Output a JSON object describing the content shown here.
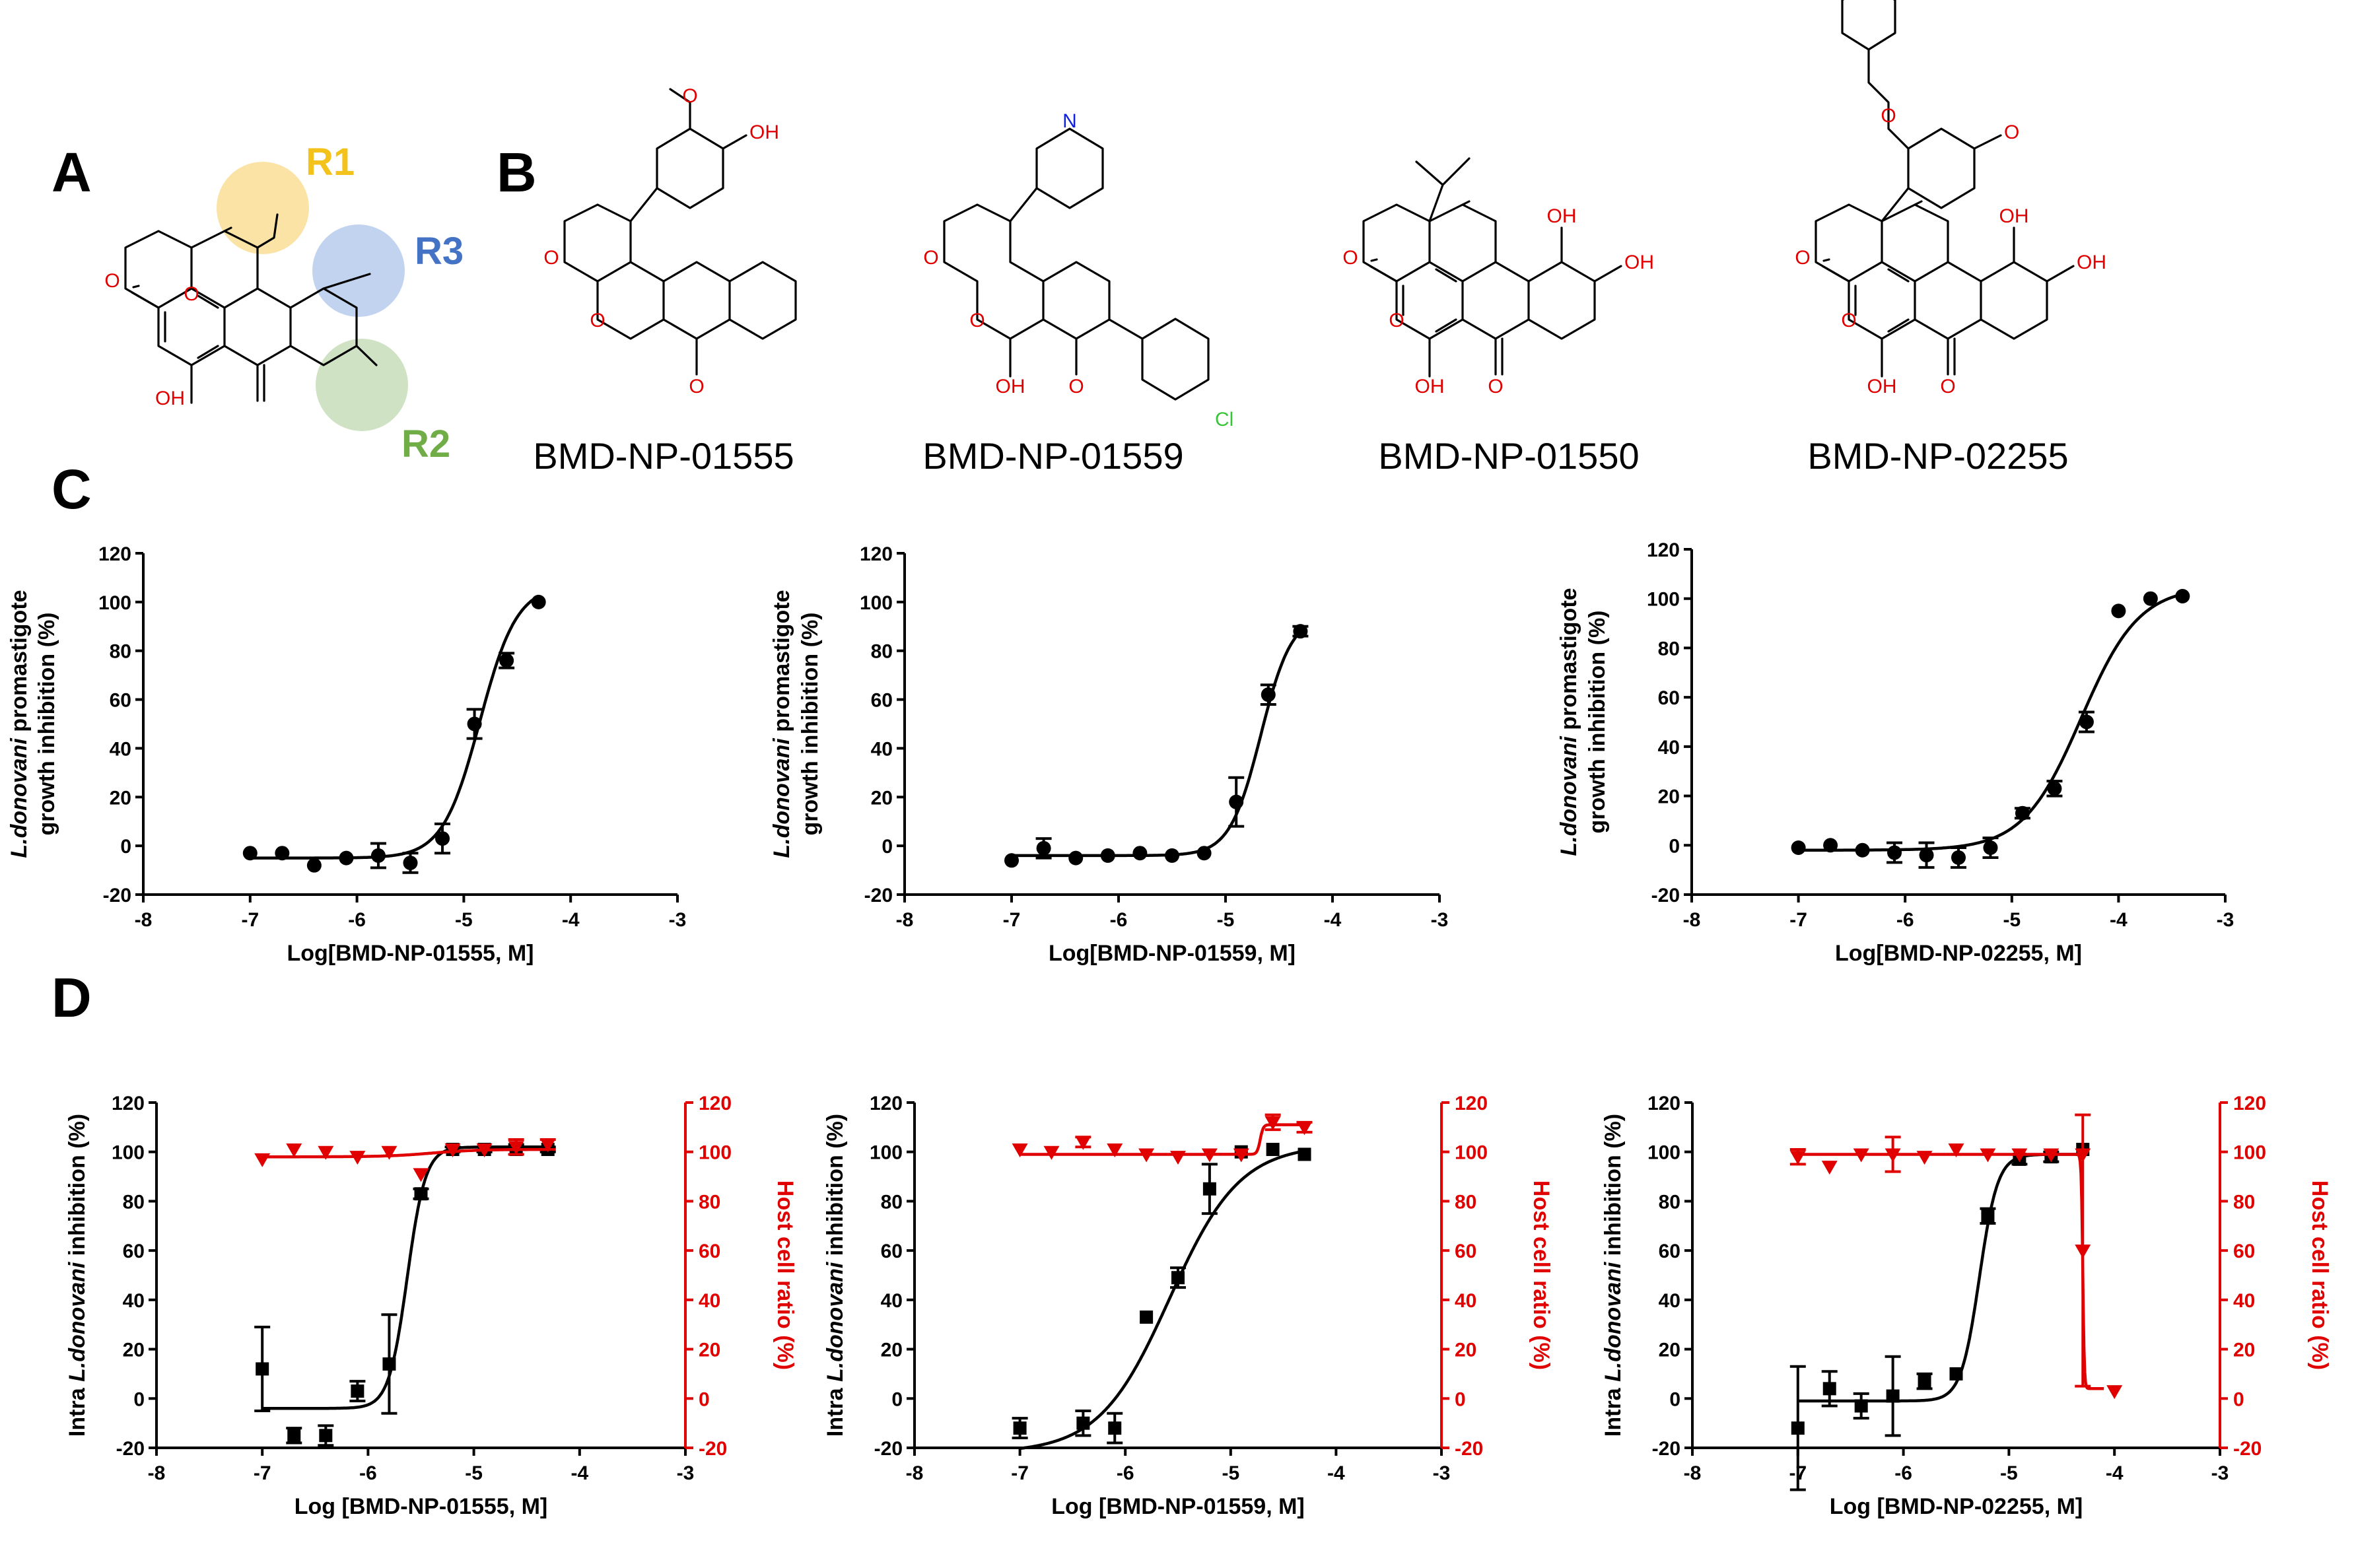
{
  "panels": {
    "A": "A",
    "B": "B",
    "C": "C",
    "D": "D"
  },
  "panelA": {
    "r1": "R1",
    "r2": "R2",
    "r3": "R3"
  },
  "compounds": [
    "BMD-NP-01555",
    "BMD-NP-01559",
    "BMD-NP-01550",
    "BMD-NP-02255"
  ],
  "atom_labels": [
    "O",
    "OH",
    "N",
    "Cl"
  ],
  "colors": {
    "black_series": "#000000",
    "red_series": "#e00000",
    "r1": "#f3c21b",
    "r2": "#70ad47",
    "r3": "#4472c4"
  },
  "chart_data": [
    {
      "id": "C1",
      "type": "scatter",
      "xlabel": "Log[BMD-NP-01555, M]",
      "ylabel_lines": [
        {
          "italic": "L.donovani",
          "rest": " promastigote"
        },
        {
          "italic": "",
          "rest": "growth inhibition (%)"
        }
      ],
      "xlim": [
        -8,
        -3
      ],
      "xticks": [
        -8,
        -7,
        -6,
        -5,
        -4,
        -3
      ],
      "ylim": [
        -20,
        120
      ],
      "yticks": [
        -20,
        0,
        20,
        40,
        60,
        80,
        100,
        120
      ],
      "series": [
        {
          "name": "promastigote",
          "color": "#000000",
          "marker": "circle",
          "x": [
            -7.0,
            -6.7,
            -6.4,
            -6.1,
            -5.8,
            -5.5,
            -5.2,
            -4.9,
            -4.6,
            -4.3
          ],
          "y": [
            -3,
            -3,
            -8,
            -5,
            -4,
            -7,
            3,
            50,
            76,
            100
          ],
          "err": [
            0,
            0,
            0,
            0,
            5,
            4,
            6,
            6,
            3,
            0
          ],
          "fit": {
            "bottom": -5,
            "top": 107,
            "logEC50": -4.85,
            "hill": 2.5,
            "from": -7.0,
            "to": -4.3
          }
        }
      ]
    },
    {
      "id": "C2",
      "type": "scatter",
      "xlabel": "Log[BMD-NP-01559, M]",
      "ylabel_lines": [
        {
          "italic": "L.donovani",
          "rest": " promastigote"
        },
        {
          "italic": "",
          "rest": "growth inhibition (%)"
        }
      ],
      "xlim": [
        -8,
        -3
      ],
      "xticks": [
        -8,
        -7,
        -6,
        -5,
        -4,
        -3
      ],
      "ylim": [
        -20,
        120
      ],
      "yticks": [
        -20,
        0,
        20,
        40,
        60,
        80,
        100,
        120
      ],
      "series": [
        {
          "name": "promastigote",
          "color": "#000000",
          "marker": "circle",
          "x": [
            -7.0,
            -6.7,
            -6.4,
            -6.1,
            -5.8,
            -5.5,
            -5.2,
            -4.9,
            -4.6,
            -4.3
          ],
          "y": [
            -6,
            -1,
            -5,
            -4,
            -3,
            -4,
            -3,
            18,
            62,
            88
          ],
          "err": [
            0,
            4,
            0,
            0,
            0,
            0,
            0,
            10,
            4,
            2
          ],
          "fit": {
            "bottom": -4,
            "top": 95,
            "logEC50": -4.67,
            "hill": 3.0,
            "from": -7.0,
            "to": -4.3
          }
        }
      ]
    },
    {
      "id": "C3",
      "type": "scatter",
      "xlabel": "Log[BMD-NP-02255, M]",
      "ylabel_lines": [
        {
          "italic": "L.donovani",
          "rest": " promastigote"
        },
        {
          "italic": "",
          "rest": "growth inhibition (%)"
        }
      ],
      "xlim": [
        -8,
        -3
      ],
      "xticks": [
        -8,
        -7,
        -6,
        -5,
        -4,
        -3
      ],
      "ylim": [
        -20,
        120
      ],
      "yticks": [
        -20,
        0,
        20,
        40,
        60,
        80,
        100,
        120
      ],
      "series": [
        {
          "name": "promastigote",
          "color": "#000000",
          "marker": "circle",
          "x": [
            -7.0,
            -6.7,
            -6.4,
            -6.1,
            -5.8,
            -5.5,
            -5.2,
            -4.9,
            -4.6,
            -4.3,
            -4.0,
            -3.7,
            -3.4
          ],
          "y": [
            -1,
            0,
            -2,
            -3,
            -4,
            -5,
            -1,
            13,
            23,
            50,
            95,
            100,
            101
          ],
          "err": [
            0,
            0,
            0,
            4,
            5,
            4,
            4,
            2,
            3,
            4,
            0,
            0,
            0
          ],
          "fit": {
            "bottom": -2,
            "top": 105,
            "logEC50": -4.35,
            "hill": 1.6,
            "from": -7.0,
            "to": -3.4
          }
        }
      ]
    },
    {
      "id": "D1",
      "type": "scatter",
      "xlabel": "Log [BMD-NP-01555, M]",
      "ylabel_lines": [
        {
          "pre": "Intra ",
          "italic": "L.donovani",
          "rest": " inhibition (%)"
        }
      ],
      "y2label": "Host cell ratio (%)",
      "xlim": [
        -8,
        -3
      ],
      "xticks": [
        -8,
        -7,
        -6,
        -5,
        -4,
        -3
      ],
      "ylim": [
        -20,
        120
      ],
      "yticks": [
        -20,
        0,
        20,
        40,
        60,
        80,
        100,
        120
      ],
      "y2lim": [
        -20,
        120
      ],
      "y2ticks": [
        -20,
        0,
        20,
        40,
        60,
        80,
        100,
        120
      ],
      "series": [
        {
          "name": "Intra L.donovani inhibition",
          "color": "#000000",
          "marker": "square",
          "x": [
            -7.0,
            -6.7,
            -6.4,
            -6.1,
            -5.8,
            -5.5,
            -5.2,
            -4.9,
            -4.6,
            -4.3
          ],
          "y": [
            12,
            -15,
            -15,
            3,
            14,
            83,
            101,
            101,
            101,
            101
          ],
          "err": [
            17,
            3,
            4,
            4,
            20,
            2,
            1,
            1,
            2,
            1
          ],
          "fit": {
            "bottom": -4,
            "top": 102,
            "logEC50": -5.63,
            "hill": 5.0,
            "from": -7.0,
            "to": -4.3
          }
        },
        {
          "name": "Host cell ratio",
          "axis": "right",
          "color": "#e00000",
          "marker": "triangle-down",
          "x": [
            -7.0,
            -6.7,
            -6.4,
            -6.1,
            -5.8,
            -5.5,
            -5.2,
            -4.9,
            -4.6,
            -4.3
          ],
          "y": [
            97,
            101,
            100,
            98,
            100,
            91,
            101,
            101,
            102,
            103
          ],
          "err": [
            0,
            0,
            0,
            0,
            0,
            0,
            0,
            0,
            3,
            2
          ],
          "fit": {
            "bottom": 98,
            "top": 101,
            "logEC50": -5.4,
            "hill": 2.0,
            "from": -7.0,
            "to": -4.3
          }
        }
      ]
    },
    {
      "id": "D2",
      "type": "scatter",
      "xlabel": "Log [BMD-NP-01559, M]",
      "ylabel_lines": [
        {
          "pre": "Intra ",
          "italic": "L.donovani",
          "rest": " inhibition (%)"
        }
      ],
      "y2label": "Host cell ratio (%)",
      "xlim": [
        -8,
        -3
      ],
      "xticks": [
        -8,
        -7,
        -6,
        -5,
        -4,
        -3
      ],
      "ylim": [
        -20,
        120
      ],
      "yticks": [
        -20,
        0,
        20,
        40,
        60,
        80,
        100,
        120
      ],
      "y2lim": [
        -20,
        120
      ],
      "y2ticks": [
        -20,
        0,
        20,
        40,
        60,
        80,
        100,
        120
      ],
      "series": [
        {
          "name": "Intra L.donovani inhibition",
          "color": "#000000",
          "marker": "square",
          "x": [
            -7.0,
            -6.4,
            -6.1,
            -5.8,
            -5.5,
            -5.2,
            -4.9,
            -4.6,
            -4.3
          ],
          "y": [
            -12,
            -10,
            -12,
            33,
            49,
            85,
            100,
            101,
            99
          ],
          "err": [
            4,
            5,
            6,
            0,
            4,
            10,
            0,
            0,
            0
          ],
          "fit": {
            "bottom": -22,
            "top": 103,
            "logEC50": -5.58,
            "hill": 1.3,
            "from": -7.0,
            "to": -4.3
          }
        },
        {
          "name": "Host cell ratio",
          "axis": "right",
          "color": "#e00000",
          "marker": "triangle-down",
          "x": [
            -7.0,
            -6.7,
            -6.4,
            -6.1,
            -5.8,
            -5.5,
            -5.2,
            -4.9,
            -4.6,
            -4.3
          ],
          "y": [
            101,
            100,
            104,
            101,
            99,
            98,
            99,
            99,
            112,
            110
          ],
          "err": [
            0,
            0,
            2,
            0,
            0,
            0,
            0,
            0,
            3,
            2
          ],
          "fit": {
            "bottom": 99,
            "top": 111,
            "logEC50": -4.72,
            "hill": 30,
            "from": -7.0,
            "to": -4.3
          }
        }
      ]
    },
    {
      "id": "D3",
      "type": "scatter",
      "xlabel": "Log [BMD-NP-02255, M]",
      "ylabel_lines": [
        {
          "pre": "Intra ",
          "italic": "L.donovani",
          "rest": " inhibition (%)"
        }
      ],
      "y2label": "Host cell ratio (%)",
      "xlim": [
        -8,
        -3
      ],
      "xticks": [
        -8,
        -7,
        -6,
        -5,
        -4,
        -3
      ],
      "ylim": [
        -20,
        120
      ],
      "yticks": [
        -20,
        0,
        20,
        40,
        60,
        80,
        100,
        120
      ],
      "y2lim": [
        -20,
        120
      ],
      "y2ticks": [
        -20,
        0,
        20,
        40,
        60,
        80,
        100,
        120
      ],
      "series": [
        {
          "name": "Intra L.donovani inhibition",
          "color": "#000000",
          "marker": "square",
          "x": [
            -7.0,
            -6.7,
            -6.4,
            -6.1,
            -5.8,
            -5.5,
            -5.2,
            -4.9,
            -4.6,
            -4.3
          ],
          "y": [
            -12,
            4,
            -3,
            1,
            7,
            10,
            74,
            97,
            98,
            101
          ],
          "err": [
            25,
            7,
            5,
            16,
            3,
            0,
            3,
            2,
            2,
            0
          ],
          "fit": {
            "bottom": -1,
            "top": 99,
            "logEC50": -5.28,
            "hill": 5.0,
            "from": -7.0,
            "to": -4.3
          }
        },
        {
          "name": "Host cell ratio",
          "axis": "right",
          "color": "#e00000",
          "marker": "triangle-down",
          "x": [
            -7.0,
            -6.7,
            -6.4,
            -6.1,
            -5.8,
            -5.5,
            -5.2,
            -4.9,
            -4.6,
            -4.3,
            -4.3,
            -4.0
          ],
          "y": [
            98,
            94,
            99,
            99,
            98,
            101,
            99,
            99,
            99,
            99,
            60,
            3
          ],
          "err": [
            3,
            0,
            0,
            7,
            0,
            0,
            0,
            0,
            0,
            0,
            55,
            0
          ],
          "fit": {
            "bottom": 4,
            "top": 99,
            "logEC50": -4.3,
            "hill": -60,
            "from": -7.0,
            "to": -4.1
          }
        }
      ]
    }
  ]
}
